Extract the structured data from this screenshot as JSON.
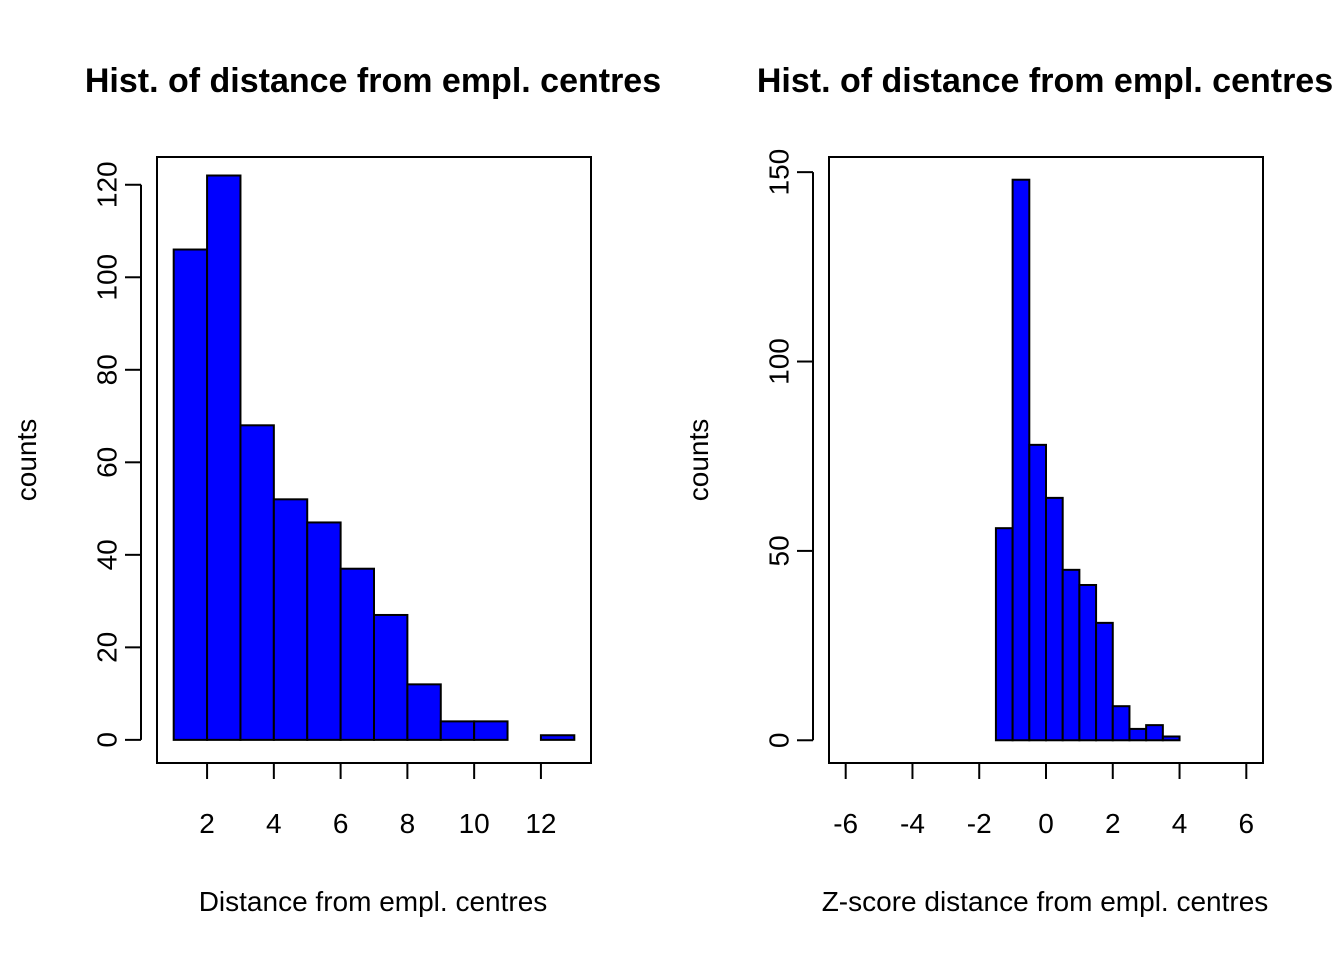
{
  "chart_data": [
    {
      "type": "bar",
      "title": "Hist. of distance from empl. centres",
      "xlabel": "Distance from empl. centres",
      "ylabel": "counts",
      "bar_color": "#0000ff",
      "edge_color": "#000000",
      "bins": [
        [
          1,
          2
        ],
        [
          2,
          3
        ],
        [
          3,
          4
        ],
        [
          4,
          5
        ],
        [
          5,
          6
        ],
        [
          6,
          7
        ],
        [
          7,
          8
        ],
        [
          8,
          9
        ],
        [
          9,
          10
        ],
        [
          10,
          11
        ],
        [
          11,
          12
        ],
        [
          12,
          13
        ]
      ],
      "values": [
        106,
        122,
        68,
        52,
        47,
        37,
        27,
        12,
        4,
        4,
        0,
        1
      ],
      "xlim": [
        0.5,
        13.5
      ],
      "ylim": [
        -5,
        126
      ],
      "xticks": [
        2,
        4,
        6,
        8,
        10,
        12
      ],
      "xtick_labels": [
        "2",
        "4",
        "6",
        "8",
        "10",
        "12"
      ],
      "yticks": [
        0,
        20,
        40,
        60,
        80,
        100,
        120
      ],
      "ytick_labels": [
        "0",
        "20",
        "40",
        "60",
        "80",
        "100",
        "120"
      ],
      "grid": false,
      "legend": "none"
    },
    {
      "type": "bar",
      "title": "Hist. of distance from empl. centres",
      "xlabel": "Z-score distance from empl. centres",
      "ylabel": "counts",
      "bar_color": "#0000ff",
      "edge_color": "#000000",
      "bins": [
        [
          -1.5,
          -1
        ],
        [
          -1,
          -0.5
        ],
        [
          -0.5,
          0
        ],
        [
          0,
          0.5
        ],
        [
          0.5,
          1
        ],
        [
          1,
          1.5
        ],
        [
          1.5,
          2
        ],
        [
          2,
          2.5
        ],
        [
          2.5,
          3
        ],
        [
          3,
          3.5
        ],
        [
          3.5,
          4
        ]
      ],
      "values": [
        56,
        148,
        78,
        64,
        45,
        41,
        31,
        9,
        3,
        4,
        1
      ],
      "xlim": [
        -6.5,
        6.5
      ],
      "ylim": [
        -6,
        154
      ],
      "xticks": [
        -6,
        -4,
        -2,
        0,
        2,
        4,
        6
      ],
      "xtick_labels": [
        "-6",
        "-4",
        "-2",
        "0",
        "2",
        "4",
        "6"
      ],
      "yticks": [
        0,
        50,
        100,
        150
      ],
      "ytick_labels": [
        "0",
        "50",
        "100",
        "150"
      ],
      "grid": false,
      "legend": "none"
    }
  ]
}
